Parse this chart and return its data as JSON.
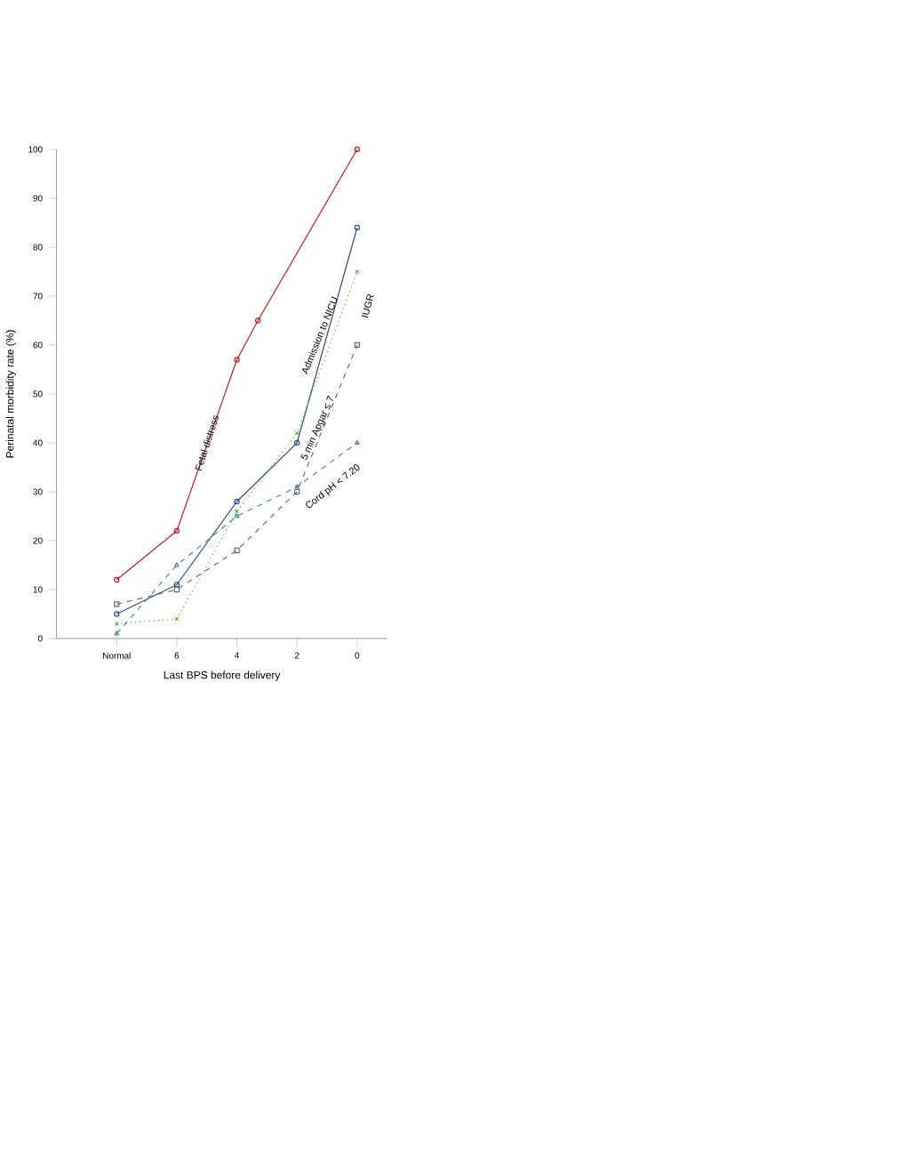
{
  "chart_data": {
    "type": "line",
    "xlabel": "Last BPS before delivery",
    "ylabel": "Perinatal morbidity rate (%)",
    "xlim": [
      10,
      -1
    ],
    "xticks": [
      {
        "value": 8,
        "label": "Normal"
      },
      6,
      4,
      2,
      0
    ],
    "ylim": [
      0,
      100
    ],
    "yticks": [
      0,
      10,
      20,
      30,
      40,
      50,
      60,
      70,
      80,
      90,
      100
    ],
    "grid": false,
    "legend": false,
    "series": [
      {
        "name": "Fetal distress",
        "color": "#b22222",
        "marker": "circle",
        "line_style": "solid",
        "x": [
          8,
          6,
          4,
          3.3,
          0
        ],
        "values": [
          12,
          22,
          57,
          65,
          100
        ]
      },
      {
        "name": "Admission to NICU",
        "color": "#2f4f7f",
        "marker": "circle",
        "line_style": "solid",
        "x": [
          8,
          6,
          4,
          2,
          0
        ],
        "values": [
          5,
          11,
          28,
          40,
          84
        ]
      },
      {
        "name": "IUGR",
        "color": "#5aaa3a",
        "marker": "cross",
        "line_style": "dotted",
        "x": [
          8,
          6,
          4,
          2,
          0
        ],
        "values": [
          3,
          4,
          26,
          42,
          75
        ]
      },
      {
        "name": "5 min Apgar ≤ 7",
        "color": "#6a6a80",
        "marker": "square",
        "line_style": "dashed",
        "x": [
          8,
          6,
          4,
          2,
          0
        ],
        "values": [
          7,
          10,
          18,
          30,
          60
        ]
      },
      {
        "name": "Cord pH < 7.20",
        "color": "#4a8a9a",
        "marker": "triangle",
        "line_style": "dashed",
        "x": [
          8,
          6,
          4,
          2,
          0
        ],
        "values": [
          1,
          15,
          25,
          31,
          40
        ]
      }
    ]
  }
}
